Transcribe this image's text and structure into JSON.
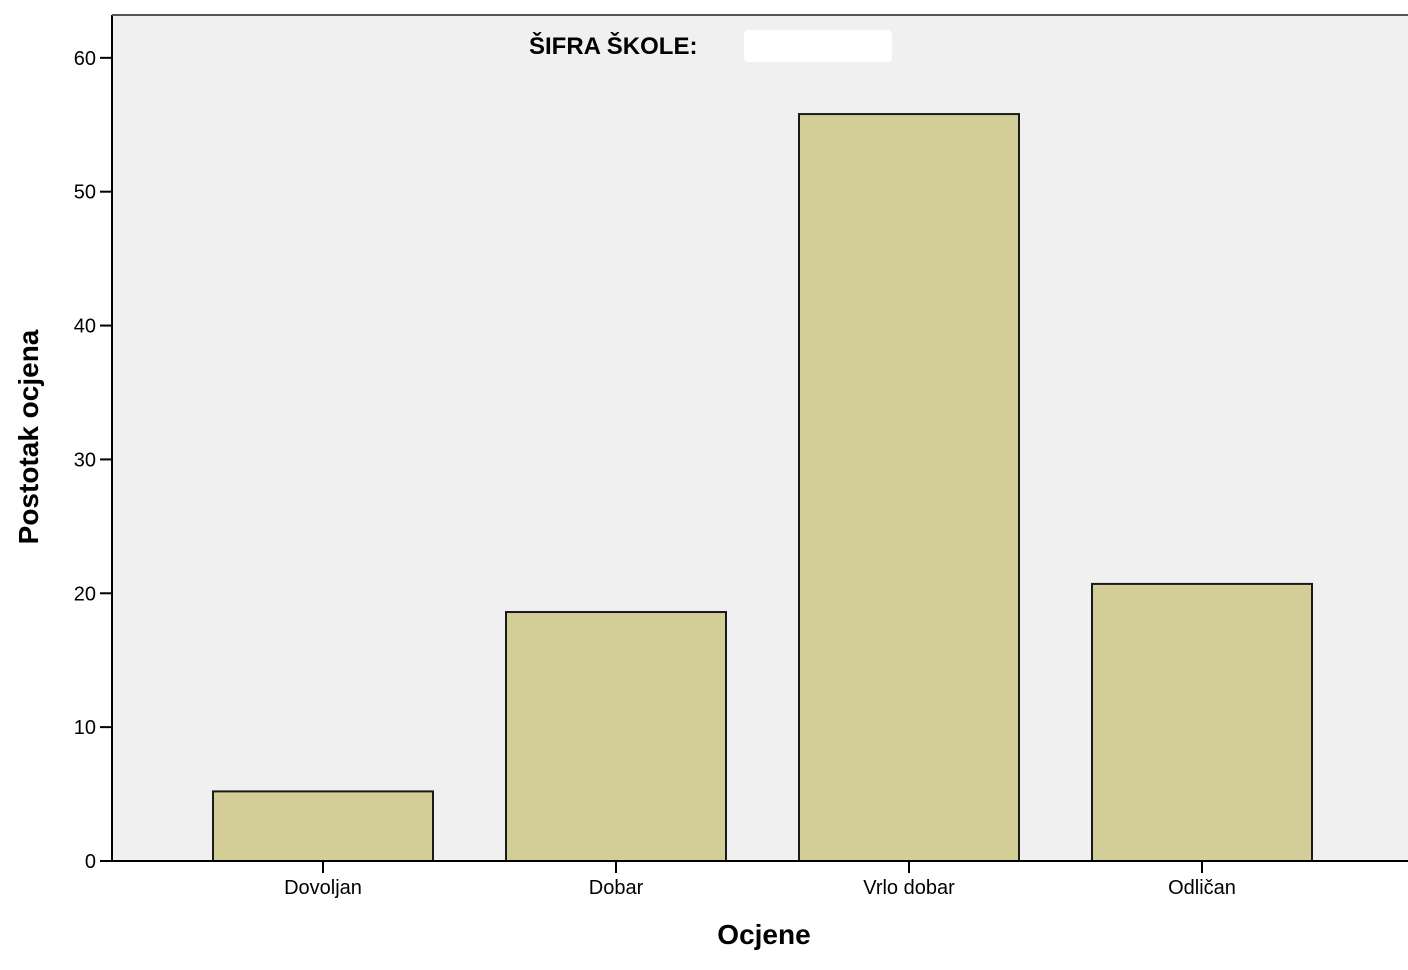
{
  "chart_data": {
    "type": "bar",
    "title": "ŠIFRA ŠKOLE:",
    "xlabel": "Ocjene",
    "ylabel": "Postotak ocjena",
    "categories": [
      "Dovoljan",
      "Dobar",
      "Vrlo dobar",
      "Odličan"
    ],
    "values": [
      5.2,
      18.6,
      55.8,
      20.7
    ],
    "ylim": [
      0,
      63.2
    ],
    "yticks": [
      "0",
      "10",
      "20",
      "30",
      "40",
      "50",
      "60"
    ],
    "grid": false,
    "legend": "none",
    "colors": {
      "bar_fill": "#d3ce97",
      "bar_stroke": "#1a1a1a",
      "plot_background": "#f0f0f0",
      "axis": "#000000"
    }
  }
}
